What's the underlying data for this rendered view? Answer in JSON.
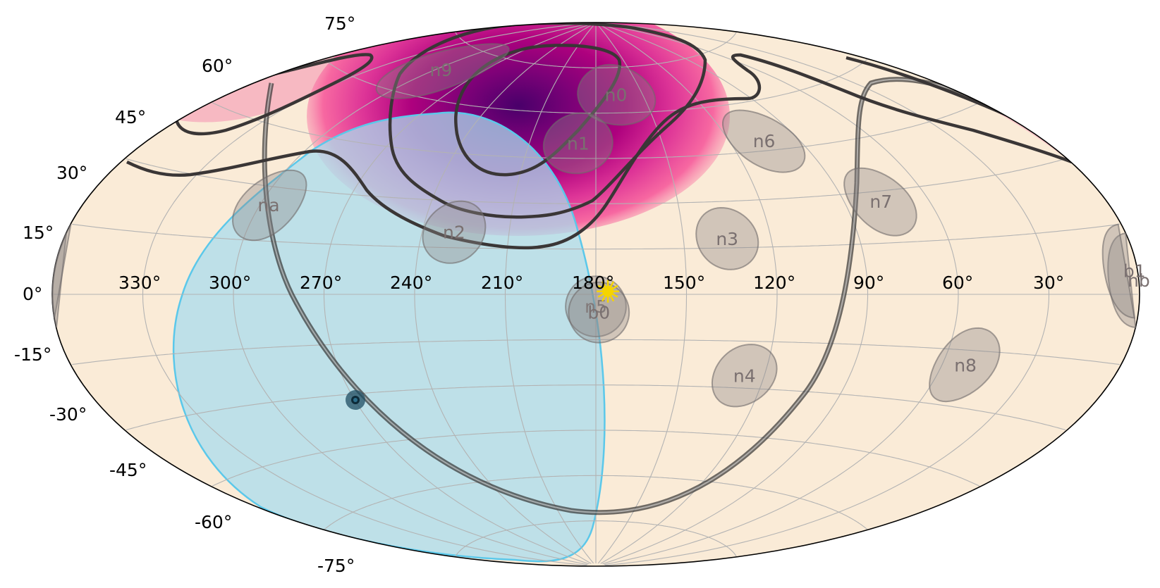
{
  "projection": "aitoff",
  "colors": {
    "background": "#faebd7",
    "earth_occultation": "#a9dcee",
    "earth_occultation_edge": "#5bc8ea",
    "contours": "#3a3636",
    "detector_fill": "#8f8a8a",
    "galactic_plane": "#333333",
    "sun": "#f5d400",
    "earth_center": "#1f4d63",
    "probability_colormap": "RdPu"
  },
  "longitude_labels": [
    "330°",
    "300°",
    "270°",
    "240°",
    "210°",
    "180°",
    "150°",
    "120°",
    "90°",
    "60°",
    "30°"
  ],
  "latitude_labels": [
    "75°",
    "60°",
    "45°",
    "30°",
    "15°",
    "0°",
    "-15°",
    "-30°",
    "-45°",
    "-60°",
    "-75°"
  ],
  "detectors": [
    {
      "name": "n0",
      "ra": 167,
      "dec": 66
    },
    {
      "name": "n1",
      "ra": 188,
      "dec": 50
    },
    {
      "name": "n2",
      "ra": 229,
      "dec": 20
    },
    {
      "name": "n3",
      "ra": 135,
      "dec": 18
    },
    {
      "name": "n4",
      "ra": 127,
      "dec": -26
    },
    {
      "name": "n5",
      "ra": 180,
      "dec": -4
    },
    {
      "name": "n6",
      "ra": 105,
      "dec": 48
    },
    {
      "name": "n7",
      "ra": 77,
      "dec": 27
    },
    {
      "name": "n8",
      "ra": 52,
      "dec": -19
    },
    {
      "name": "n9",
      "ra": 297,
      "dec": 68
    },
    {
      "name": "na",
      "ra": 297,
      "dec": 25
    },
    {
      "name": "nb",
      "ra": 0,
      "dec": 3
    },
    {
      "name": "b0",
      "ra": 179,
      "dec": -6
    },
    {
      "name": "b1",
      "ra": 1,
      "dec": 5
    }
  ],
  "sun": {
    "ra": 176,
    "dec": 1
  },
  "earth_center": {
    "ra": 266,
    "dec": -28
  }
}
